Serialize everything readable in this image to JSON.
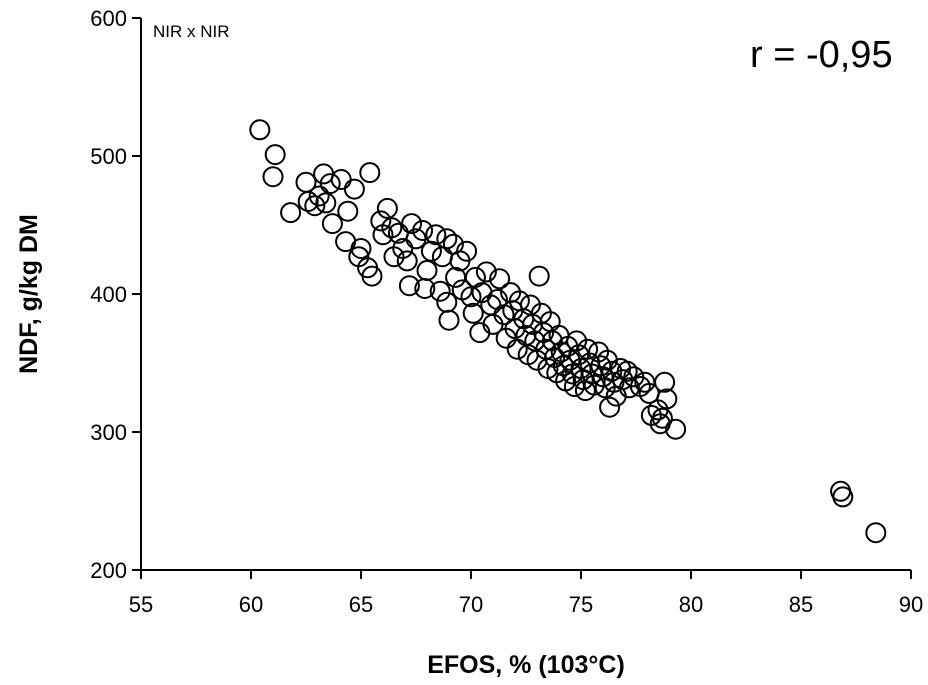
{
  "chart_data": {
    "type": "scatter",
    "title": "",
    "xlabel": "EFOS, % (103°C)",
    "ylabel": "NDF, g/kg DM",
    "xlim": [
      55,
      90
    ],
    "ylim": [
      200,
      600
    ],
    "xticks": [
      55,
      60,
      65,
      70,
      75,
      80,
      85,
      90
    ],
    "yticks": [
      200,
      300,
      400,
      500,
      600
    ],
    "grid": false,
    "marker": "open-circle",
    "color": "#000000",
    "annotations": {
      "corner": "NIR x NIR",
      "correlation": "r = -0,95"
    },
    "series": [
      {
        "points": [
          [
            60.4,
            519
          ],
          [
            61.1,
            501
          ],
          [
            61.0,
            485
          ],
          [
            61.8,
            459
          ],
          [
            62.5,
            481
          ],
          [
            62.6,
            467
          ],
          [
            62.9,
            464
          ],
          [
            63.1,
            471
          ],
          [
            63.3,
            487
          ],
          [
            63.6,
            480
          ],
          [
            63.4,
            466
          ],
          [
            63.7,
            451
          ],
          [
            64.1,
            483
          ],
          [
            64.4,
            460
          ],
          [
            64.7,
            476
          ],
          [
            65.4,
            488
          ],
          [
            64.3,
            438
          ],
          [
            64.9,
            427
          ],
          [
            65.3,
            419
          ],
          [
            65.5,
            413
          ],
          [
            65.0,
            433
          ],
          [
            65.9,
            453
          ],
          [
            66.2,
            462
          ],
          [
            66.0,
            443
          ],
          [
            66.4,
            448
          ],
          [
            66.7,
            444
          ],
          [
            66.5,
            427
          ],
          [
            66.9,
            433
          ],
          [
            67.1,
            424
          ],
          [
            67.3,
            451
          ],
          [
            67.5,
            440
          ],
          [
            67.8,
            446
          ],
          [
            67.2,
            406
          ],
          [
            67.9,
            404
          ],
          [
            68.0,
            417
          ],
          [
            68.2,
            431
          ],
          [
            68.4,
            443
          ],
          [
            68.7,
            427
          ],
          [
            68.9,
            440
          ],
          [
            68.6,
            402
          ],
          [
            68.9,
            394
          ],
          [
            69.0,
            381
          ],
          [
            69.3,
            412
          ],
          [
            69.5,
            424
          ],
          [
            69.2,
            436
          ],
          [
            69.8,
            431
          ],
          [
            69.6,
            403
          ],
          [
            70.0,
            398
          ],
          [
            70.1,
            386
          ],
          [
            70.2,
            412
          ],
          [
            70.5,
            401
          ],
          [
            70.4,
            372
          ],
          [
            70.7,
            416
          ],
          [
            70.9,
            392
          ],
          [
            71.0,
            378
          ],
          [
            71.3,
            411
          ],
          [
            71.2,
            396
          ],
          [
            71.5,
            385
          ],
          [
            71.6,
            368
          ],
          [
            71.8,
            401
          ],
          [
            71.9,
            388
          ],
          [
            72.0,
            375
          ],
          [
            72.1,
            360
          ],
          [
            72.2,
            395
          ],
          [
            72.4,
            382
          ],
          [
            72.5,
            370
          ],
          [
            72.6,
            356
          ],
          [
            72.7,
            392
          ],
          [
            72.8,
            378
          ],
          [
            72.9,
            366
          ],
          [
            73.0,
            352
          ],
          [
            73.1,
            413
          ],
          [
            73.2,
            386
          ],
          [
            73.3,
            372
          ],
          [
            73.4,
            360
          ],
          [
            73.5,
            346
          ],
          [
            73.6,
            380
          ],
          [
            73.7,
            366
          ],
          [
            73.8,
            354
          ],
          [
            73.9,
            343
          ],
          [
            74.0,
            370
          ],
          [
            74.1,
            358
          ],
          [
            74.2,
            348
          ],
          [
            74.3,
            337
          ],
          [
            74.4,
            362
          ],
          [
            74.5,
            352
          ],
          [
            74.6,
            342
          ],
          [
            74.7,
            333
          ],
          [
            74.8,
            366
          ],
          [
            74.9,
            356
          ],
          [
            75.0,
            346
          ],
          [
            75.1,
            338
          ],
          [
            75.2,
            330
          ],
          [
            75.3,
            360
          ],
          [
            75.4,
            350
          ],
          [
            75.5,
            342
          ],
          [
            75.6,
            334
          ],
          [
            75.8,
            358
          ],
          [
            75.9,
            348
          ],
          [
            76.0,
            340
          ],
          [
            76.1,
            332
          ],
          [
            76.2,
            352
          ],
          [
            76.4,
            344
          ],
          [
            76.5,
            336
          ],
          [
            76.6,
            326
          ],
          [
            76.3,
            318
          ],
          [
            76.8,
            346
          ],
          [
            76.9,
            338
          ],
          [
            77.1,
            344
          ],
          [
            77.2,
            332
          ],
          [
            77.4,
            340
          ],
          [
            77.7,
            333
          ],
          [
            77.9,
            336
          ],
          [
            78.1,
            328
          ],
          [
            78.2,
            312
          ],
          [
            78.5,
            316
          ],
          [
            78.6,
            306
          ],
          [
            78.8,
            336
          ],
          [
            78.9,
            324
          ],
          [
            78.7,
            310
          ],
          [
            79.3,
            302
          ],
          [
            86.8,
            257
          ],
          [
            86.9,
            253
          ],
          [
            88.4,
            227
          ]
        ]
      }
    ]
  }
}
